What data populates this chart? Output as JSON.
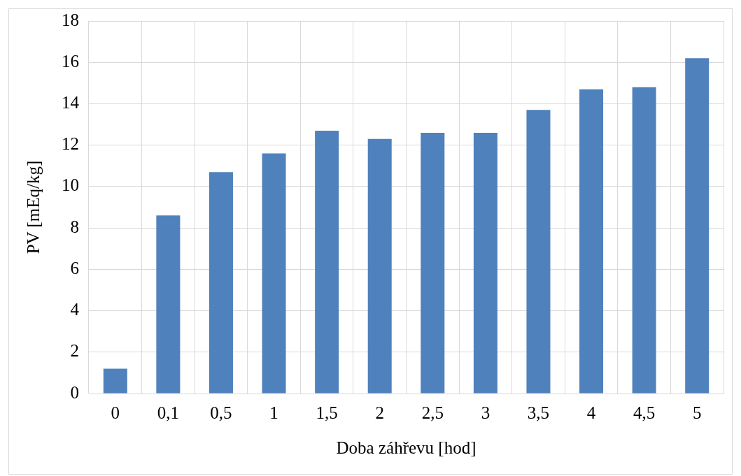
{
  "chart_data": {
    "type": "bar",
    "xlabel": "Doba záhřevu [hod]",
    "ylabel": "PV [mEq/kg]",
    "categories": [
      "0",
      "0,1",
      "0,5",
      "1",
      "1,5",
      "2",
      "2,5",
      "3",
      "3,5",
      "4",
      "4,5",
      "5"
    ],
    "values": [
      1.2,
      8.6,
      10.7,
      11.6,
      12.7,
      12.3,
      12.6,
      12.6,
      13.7,
      14.7,
      14.8,
      16.2
    ],
    "color": "#4f81bd",
    "ylim": [
      0,
      18
    ],
    "yticks": [
      0,
      2,
      4,
      6,
      8,
      10,
      12,
      14,
      16,
      18
    ],
    "grid": true,
    "legend": false
  }
}
